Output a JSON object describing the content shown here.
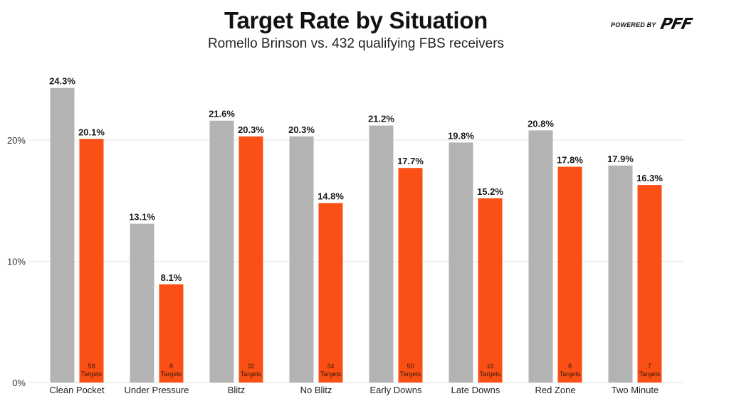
{
  "header": {
    "title": "Target Rate by Situation",
    "subtitle": "Romello Brinson vs. 432 qualifying FBS receivers",
    "powered_by": "POWERED BY",
    "brand_logo": "PFF"
  },
  "colors": {
    "fbs_bar": "#b3b3b3",
    "player_bar": "#fa5016",
    "grid": "#e6e6e6",
    "text": "#1a1a1a"
  },
  "chart_data": {
    "type": "bar",
    "title": "Target Rate by Situation",
    "subtitle": "Romello Brinson vs. 432 qualifying FBS receivers",
    "xlabel": "",
    "ylabel": "",
    "ylim": [
      0,
      25
    ],
    "yticks": [
      0,
      10,
      20
    ],
    "ytick_labels": [
      "0%",
      "10%",
      "20%"
    ],
    "grid": true,
    "legend": "none",
    "categories": [
      "Clean Pocket",
      "Under Pressure",
      "Blitz",
      "No Blitz",
      "Early Downs",
      "Late Downs",
      "Red Zone",
      "Two Minute"
    ],
    "series": [
      {
        "name": "432 qualifying FBS receivers",
        "color": "#b3b3b3",
        "values": [
          24.3,
          13.1,
          21.6,
          20.3,
          21.2,
          19.8,
          20.8,
          17.9
        ],
        "labels": [
          "24.3%",
          "13.1%",
          "21.6%",
          "20.3%",
          "21.2%",
          "19.8%",
          "20.8%",
          "17.9%"
        ]
      },
      {
        "name": "Romello Brinson",
        "color": "#fa5016",
        "values": [
          20.1,
          8.1,
          20.3,
          14.8,
          17.7,
          15.2,
          17.8,
          16.3
        ],
        "labels": [
          "20.1%",
          "8.1%",
          "20.3%",
          "14.8%",
          "17.7%",
          "15.2%",
          "17.8%",
          "16.3%"
        ],
        "targets": [
          58,
          8,
          32,
          34,
          50,
          16,
          8,
          7
        ],
        "targets_suffix": "Targets"
      }
    ]
  }
}
